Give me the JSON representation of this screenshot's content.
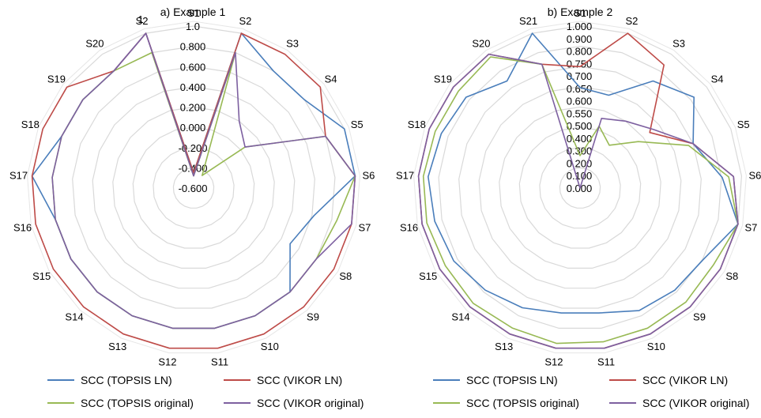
{
  "series_styles": [
    {
      "key": "topsis_ln",
      "color": "#4a7ebb"
    },
    {
      "key": "vikor_ln",
      "color": "#be4b48"
    },
    {
      "key": "topsis_original",
      "color": "#98b954"
    },
    {
      "key": "vikor_original",
      "color": "#7d60a0"
    }
  ],
  "grid_color": "#d9d9d9",
  "chart_data": [
    {
      "type": "radar",
      "title": "a) Example 1",
      "categories": [
        "S1",
        "S2",
        "S3",
        "S4",
        "S5",
        "S6",
        "S7",
        "S8",
        "S9",
        "S10",
        "S11",
        "S12",
        "S13",
        "S14",
        "S15",
        "S16",
        "S17",
        "S18",
        "S19",
        "S20",
        "S2"
      ],
      "radial_range": [
        -0.6,
        1.0
      ],
      "ticks": [
        "-0.600",
        "-0.400",
        "-0.200",
        "0.000",
        "0.200",
        "0.400",
        "0.600",
        "0.800",
        "1.0"
      ],
      "extra_tick_label": "1",
      "grid": true,
      "legend_position": "bottom",
      "series": [
        {
          "name": "SCC (TOPSIS LN)",
          "values": [
            -0.45,
            1.0,
            0.8,
            0.8,
            1.0,
            1.0,
            0.62,
            0.5,
            0.8,
            0.8,
            0.8,
            0.8,
            0.8,
            0.8,
            0.8,
            0.8,
            1.0,
            0.8,
            0.8,
            0.8,
            1.0
          ]
        },
        {
          "name": "SCC (VIKOR LN)",
          "values": [
            -0.45,
            1.0,
            1.0,
            1.0,
            0.8,
            1.0,
            1.0,
            1.0,
            1.0,
            1.0,
            1.0,
            1.0,
            1.0,
            1.0,
            1.0,
            1.0,
            1.0,
            1.0,
            1.0,
            0.8,
            1.0
          ]
        },
        {
          "name": "SCC (TOPSIS original)",
          "values": [
            -0.48,
            0.8,
            -0.45,
            0.05,
            0.8,
            1.0,
            0.85,
            0.8,
            0.8,
            0.8,
            0.8,
            0.8,
            0.8,
            0.8,
            0.8,
            0.8,
            0.8,
            0.8,
            0.8,
            0.8,
            0.8
          ]
        },
        {
          "name": "SCC (VIKOR original)",
          "values": [
            -0.48,
            0.8,
            0.2,
            0.05,
            0.8,
            1.0,
            1.0,
            0.8,
            0.8,
            0.8,
            0.8,
            0.8,
            0.8,
            0.8,
            0.8,
            0.8,
            0.8,
            0.8,
            0.8,
            0.8,
            1.0
          ]
        }
      ]
    },
    {
      "type": "radar",
      "title": "b) Example 2",
      "categories": [
        "S1",
        "S2",
        "S3",
        "S4",
        "S5",
        "S6",
        "S7",
        "S8",
        "S9",
        "S10",
        "S11",
        "S12",
        "S13",
        "S14",
        "S15",
        "S16",
        "S17",
        "S18",
        "S19",
        "S20",
        "S21"
      ],
      "radial_range": [
        0.0,
        1.0
      ],
      "ticks": [
        "0.000",
        "0.100",
        "0.200",
        "0.300",
        "0.400",
        "0.500",
        "0.550",
        "0.600",
        "0.650",
        "0.700",
        "0.750",
        "0.800",
        "0.900",
        "1.000"
      ],
      "grid": true,
      "legend_position": "bottom",
      "series": [
        {
          "name": "SCC (TOPSIS LN)",
          "values": [
            0.62,
            0.6,
            0.8,
            0.9,
            0.75,
            0.88,
            1.0,
            0.88,
            0.86,
            0.84,
            0.78,
            0.78,
            0.82,
            0.86,
            0.9,
            0.92,
            0.94,
            0.92,
            0.9,
            0.8,
            1.0
          ]
        },
        {
          "name": "SCC (VIKOR LN)",
          "values": [
            0.75,
            1.0,
            0.92,
            0.55,
            0.75,
            0.95,
            1.0,
            1.0,
            1.0,
            1.0,
            1.0,
            1.0,
            1.0,
            1.0,
            1.0,
            1.0,
            1.0,
            1.0,
            1.0,
            1.0,
            0.8
          ]
        },
        {
          "name": "SCC (TOPSIS original)",
          "values": [
            0.2,
            0.4,
            0.32,
            0.46,
            0.72,
            0.92,
            1.0,
            0.95,
            0.96,
            0.96,
            0.96,
            0.97,
            0.96,
            0.97,
            0.96,
            0.97,
            0.97,
            0.96,
            0.96,
            0.98,
            0.8
          ]
        },
        {
          "name": "SCC (VIKOR original)",
          "values": [
            0.0,
            0.45,
            0.5,
            0.58,
            0.75,
            0.95,
            1.0,
            1.0,
            1.0,
            1.0,
            1.0,
            1.0,
            1.0,
            1.0,
            1.0,
            1.0,
            1.0,
            1.0,
            1.0,
            1.0,
            0.8
          ]
        }
      ]
    }
  ]
}
